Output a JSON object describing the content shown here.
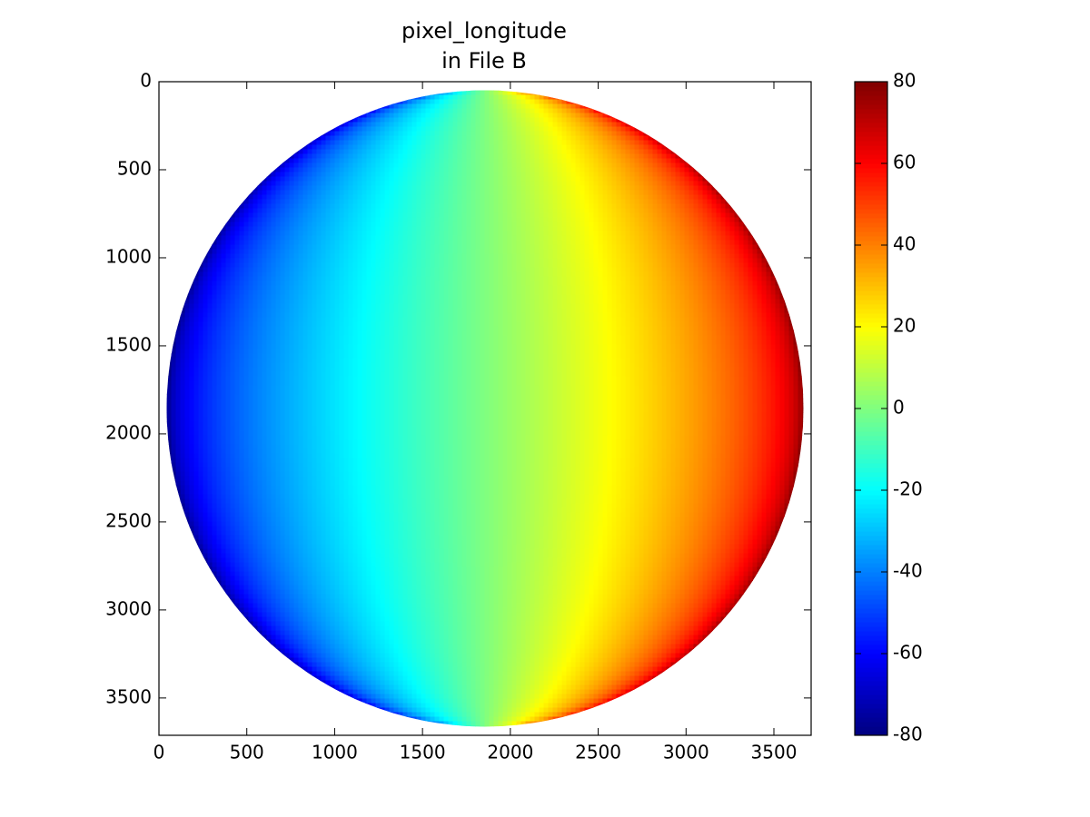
{
  "chart_data": {
    "type": "image",
    "title": "pixel_longitude",
    "subtitle": "in File B",
    "xlim": [
      0,
      3712
    ],
    "ylim": [
      3712,
      0
    ],
    "xticks": [
      0,
      500,
      1000,
      1500,
      2000,
      2500,
      3000,
      3500
    ],
    "yticks": [
      0,
      500,
      1000,
      1500,
      2000,
      2500,
      3000,
      3500
    ],
    "image": {
      "colormap": "jet",
      "center": [
        1856,
        1856
      ],
      "radius": 1812,
      "sub_longitude": 0
    },
    "colorbar": {
      "lim": [
        -80,
        80
      ],
      "ticks": [
        -80,
        -60,
        -40,
        -20,
        0,
        20,
        40,
        60,
        80
      ]
    }
  }
}
